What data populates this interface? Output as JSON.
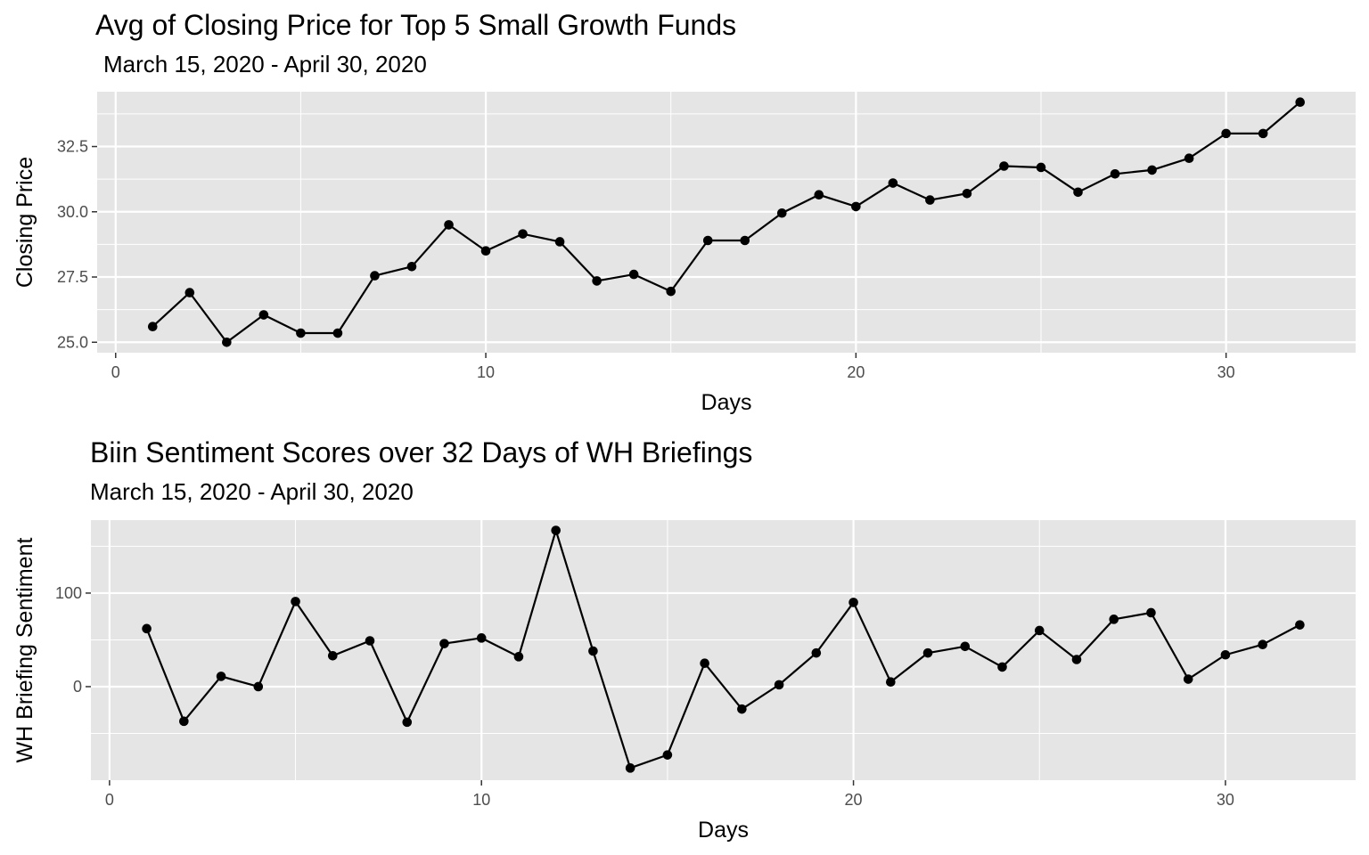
{
  "chart_data": [
    {
      "type": "line",
      "title": "Avg of Closing Price for Top 5 Small Growth Funds",
      "subtitle": "March 15, 2020 - April 30, 2020",
      "xlabel": "Days",
      "ylabel": "Closing Price",
      "xlim": [
        -0.5,
        33.5
      ],
      "ylim": [
        24.6,
        34.6
      ],
      "x_ticks": [
        0,
        10,
        20,
        30
      ],
      "x_tick_labels": [
        "0",
        "10",
        "20",
        "30"
      ],
      "y_ticks": [
        25.0,
        27.5,
        30.0,
        32.5
      ],
      "y_tick_labels": [
        "25.0",
        "27.5",
        "30.0",
        "32.5"
      ],
      "grid": true,
      "series": [
        {
          "x": [
            1,
            2,
            3,
            4,
            5,
            6,
            7,
            8,
            9,
            10,
            11,
            12,
            13,
            14,
            15,
            16,
            17,
            18,
            19,
            20,
            21,
            22,
            23,
            24,
            25,
            26,
            27,
            28,
            29,
            30,
            31,
            32
          ],
          "values": [
            25.6,
            26.9,
            25.0,
            26.05,
            25.35,
            25.35,
            27.55,
            27.9,
            29.5,
            28.5,
            29.15,
            28.85,
            27.35,
            27.6,
            26.95,
            28.9,
            28.9,
            29.95,
            30.65,
            30.2,
            31.1,
            30.45,
            30.7,
            31.75,
            31.7,
            30.75,
            31.45,
            31.6,
            32.05,
            33.0,
            33.0,
            34.2
          ]
        }
      ],
      "colors": {
        "panel": "#e5e5e5",
        "grid": "#ffffff",
        "line": "#000000"
      }
    },
    {
      "type": "line",
      "title": "Biin Sentiment Scores over 32 Days of WH Briefings",
      "subtitle": "March 15, 2020 - April 30, 2020",
      "xlabel": "Days",
      "ylabel": "WH Briefing Sentiment",
      "xlim": [
        -0.5,
        33.5
      ],
      "ylim": [
        -100,
        178
      ],
      "x_ticks": [
        0,
        10,
        20,
        30
      ],
      "x_tick_labels": [
        "0",
        "10",
        "20",
        "30"
      ],
      "y_ticks": [
        0,
        100
      ],
      "y_tick_labels": [
        "0",
        "100"
      ],
      "grid": true,
      "series": [
        {
          "x": [
            1,
            2,
            3,
            4,
            5,
            6,
            7,
            8,
            9,
            10,
            11,
            12,
            13,
            14,
            15,
            16,
            17,
            18,
            19,
            20,
            21,
            22,
            23,
            24,
            25,
            26,
            27,
            28,
            29,
            30,
            31,
            32
          ],
          "values": [
            62,
            -37,
            11,
            0,
            91,
            33,
            49,
            -38,
            46,
            52,
            32,
            167,
            38,
            -87,
            -73,
            25,
            -24,
            2,
            36,
            90,
            5,
            36,
            43,
            21,
            60,
            29,
            72,
            79,
            8,
            34,
            45,
            66
          ]
        }
      ],
      "colors": {
        "panel": "#e5e5e5",
        "grid": "#ffffff",
        "line": "#000000"
      }
    }
  ]
}
